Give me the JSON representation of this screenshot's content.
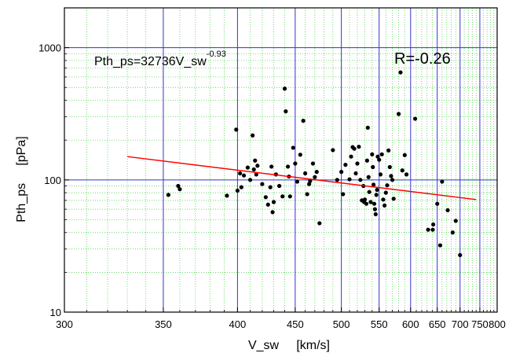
{
  "chart_data": {
    "type": "scatter",
    "xlabel": "V_sw     [km/s]",
    "ylabel": "Pth_ps     [pPa]",
    "xscale": "reciprocal",
    "yscale": "log",
    "xlim": [
      300,
      800
    ],
    "ylim": [
      10,
      2000
    ],
    "x_ticks": [
      300,
      350,
      400,
      450,
      500,
      550,
      600,
      650,
      700,
      750,
      800
    ],
    "y_ticks": [
      10,
      100,
      1000
    ],
    "grid": true,
    "annotation_fit_base": "Pth_ps=32736V_sw",
    "annotation_fit_exponent": "-0.93",
    "annotation_r": "R=-0.26",
    "colors": {
      "points": "#000000",
      "fit_line": "#ff0000",
      "major_grid": "#3333cc",
      "minor_grid": "#33cc33"
    },
    "fit_line": {
      "x": [
        330,
        740
      ],
      "y": [
        150,
        71
      ]
    },
    "series": [
      {
        "points": [
          {
            "x": 353,
            "y": 77
          },
          {
            "x": 359,
            "y": 90
          },
          {
            "x": 360,
            "y": 85
          },
          {
            "x": 392,
            "y": 76
          },
          {
            "x": 399,
            "y": 240
          },
          {
            "x": 400,
            "y": 83
          },
          {
            "x": 402,
            "y": 112
          },
          {
            "x": 403,
            "y": 88
          },
          {
            "x": 405,
            "y": 108
          },
          {
            "x": 408,
            "y": 124
          },
          {
            "x": 410,
            "y": 100
          },
          {
            "x": 412,
            "y": 217
          },
          {
            "x": 413,
            "y": 120
          },
          {
            "x": 414,
            "y": 140
          },
          {
            "x": 415,
            "y": 110
          },
          {
            "x": 416,
            "y": 128
          },
          {
            "x": 420,
            "y": 93
          },
          {
            "x": 423,
            "y": 74
          },
          {
            "x": 425,
            "y": 65
          },
          {
            "x": 427,
            "y": 88
          },
          {
            "x": 428,
            "y": 126
          },
          {
            "x": 429,
            "y": 57
          },
          {
            "x": 430,
            "y": 68
          },
          {
            "x": 432,
            "y": 110
          },
          {
            "x": 435,
            "y": 90
          },
          {
            "x": 438,
            "y": 75
          },
          {
            "x": 440,
            "y": 490
          },
          {
            "x": 441,
            "y": 330
          },
          {
            "x": 443,
            "y": 126
          },
          {
            "x": 444,
            "y": 106
          },
          {
            "x": 445,
            "y": 75
          },
          {
            "x": 448,
            "y": 175
          },
          {
            "x": 450,
            "y": 133
          },
          {
            "x": 452,
            "y": 97
          },
          {
            "x": 455,
            "y": 155
          },
          {
            "x": 458,
            "y": 280
          },
          {
            "x": 460,
            "y": 112
          },
          {
            "x": 462,
            "y": 78
          },
          {
            "x": 464,
            "y": 93
          },
          {
            "x": 465,
            "y": 98
          },
          {
            "x": 468,
            "y": 133
          },
          {
            "x": 470,
            "y": 105
          },
          {
            "x": 472,
            "y": 115
          },
          {
            "x": 475,
            "y": 47
          },
          {
            "x": 490,
            "y": 168
          },
          {
            "x": 495,
            "y": 100
          },
          {
            "x": 500,
            "y": 115
          },
          {
            "x": 502,
            "y": 78
          },
          {
            "x": 505,
            "y": 130
          },
          {
            "x": 510,
            "y": 101
          },
          {
            "x": 512,
            "y": 150
          },
          {
            "x": 514,
            "y": 177
          },
          {
            "x": 516,
            "y": 172
          },
          {
            "x": 518,
            "y": 112
          },
          {
            "x": 520,
            "y": 133
          },
          {
            "x": 522,
            "y": 178
          },
          {
            "x": 524,
            "y": 100
          },
          {
            "x": 526,
            "y": 70
          },
          {
            "x": 528,
            "y": 90
          },
          {
            "x": 529,
            "y": 68
          },
          {
            "x": 530,
            "y": 71
          },
          {
            "x": 532,
            "y": 66
          },
          {
            "x": 533,
            "y": 140
          },
          {
            "x": 534,
            "y": 248
          },
          {
            "x": 535,
            "y": 105
          },
          {
            "x": 536,
            "y": 81
          },
          {
            "x": 538,
            "y": 68
          },
          {
            "x": 540,
            "y": 156
          },
          {
            "x": 541,
            "y": 125
          },
          {
            "x": 542,
            "y": 92
          },
          {
            "x": 543,
            "y": 66
          },
          {
            "x": 544,
            "y": 60
          },
          {
            "x": 545,
            "y": 55
          },
          {
            "x": 546,
            "y": 77
          },
          {
            "x": 547,
            "y": 84
          },
          {
            "x": 548,
            "y": 150
          },
          {
            "x": 550,
            "y": 142
          },
          {
            "x": 552,
            "y": 110
          },
          {
            "x": 554,
            "y": 156
          },
          {
            "x": 556,
            "y": 71
          },
          {
            "x": 558,
            "y": 64
          },
          {
            "x": 560,
            "y": 80
          },
          {
            "x": 562,
            "y": 91
          },
          {
            "x": 564,
            "y": 167
          },
          {
            "x": 566,
            "y": 125
          },
          {
            "x": 568,
            "y": 107
          },
          {
            "x": 570,
            "y": 100
          },
          {
            "x": 572,
            "y": 72
          },
          {
            "x": 580,
            "y": 315
          },
          {
            "x": 583,
            "y": 650
          },
          {
            "x": 586,
            "y": 118
          },
          {
            "x": 590,
            "y": 154
          },
          {
            "x": 593,
            "y": 110
          },
          {
            "x": 608,
            "y": 290
          },
          {
            "x": 632,
            "y": 42
          },
          {
            "x": 641,
            "y": 42
          },
          {
            "x": 642,
            "y": 46
          },
          {
            "x": 650,
            "y": 66
          },
          {
            "x": 656,
            "y": 32
          },
          {
            "x": 660,
            "y": 97
          },
          {
            "x": 672,
            "y": 59
          },
          {
            "x": 683,
            "y": 40
          },
          {
            "x": 690,
            "y": 49
          },
          {
            "x": 700,
            "y": 27
          }
        ]
      }
    ]
  }
}
